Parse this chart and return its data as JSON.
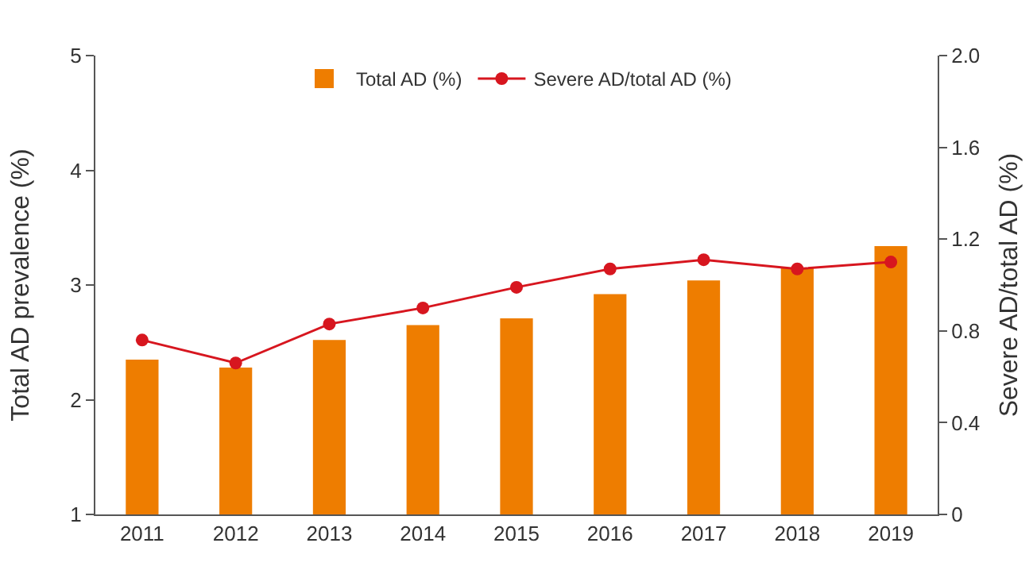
{
  "chart_data": {
    "type": "bar",
    "categories": [
      "2011",
      "2012",
      "2013",
      "2014",
      "2015",
      "2016",
      "2017",
      "2018",
      "2019"
    ],
    "ylabel": "Total AD prevalence (%)",
    "y2label": "Severe AD/total AD (%)",
    "series": [
      {
        "name": "Total AD (%)",
        "color": "#ee7d00",
        "values": [
          2.35,
          2.28,
          2.52,
          2.65,
          2.71,
          2.92,
          3.04,
          3.15,
          3.34
        ]
      },
      {
        "name": "Severe AD/total AD (%)",
        "type": "line",
        "axis": "y2",
        "color": "#d7161f",
        "marker": "circle",
        "values": [
          0.76,
          0.66,
          0.83,
          0.9,
          0.99,
          1.07,
          1.11,
          1.07,
          1.1
        ]
      }
    ],
    "ylim": [
      1,
      5
    ],
    "yticks": [
      1,
      2,
      3,
      4,
      5
    ],
    "y2lim": [
      0,
      2
    ],
    "y2ticks": [
      0,
      {
        "value": 0.4,
        "label": "0.4"
      },
      {
        "value": 0.8,
        "label": "0.8"
      },
      {
        "value": 1.2,
        "label": "1.2"
      },
      {
        "value": 1.6,
        "label": "1.6"
      },
      {
        "value": 2,
        "label": "2.0"
      }
    ],
    "grid": false,
    "legend": "top"
  }
}
